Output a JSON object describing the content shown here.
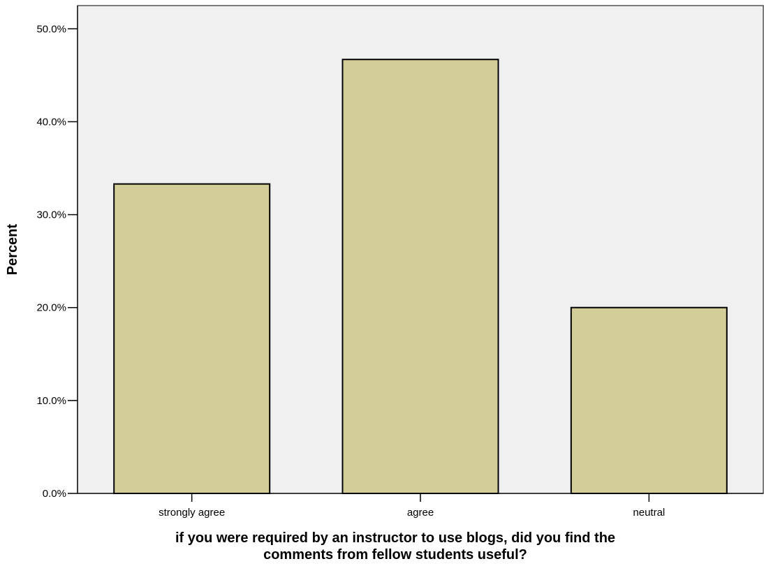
{
  "chart_data": {
    "type": "bar",
    "title": "",
    "categories": [
      "strongly agree",
      "agree",
      "neutral"
    ],
    "values": [
      33.3,
      46.7,
      20.0
    ],
    "xlabel_lines": [
      "if you were required by an instructor to use blogs, did you find the",
      "comments from fellow students useful?"
    ],
    "ylabel": "Percent",
    "ylim": [
      0,
      52.5
    ],
    "yticks": [
      0,
      10,
      20,
      30,
      40,
      50
    ],
    "ytick_labels": [
      "0.0%",
      "10.0%",
      "20.0%",
      "30.0%",
      "40.0%",
      "50.0%"
    ],
    "grid": false,
    "legend": "none",
    "colors": {
      "plot_background": "#f0f0f0",
      "bar_fill": "#d3ce97",
      "bar_stroke": "#000000"
    }
  }
}
